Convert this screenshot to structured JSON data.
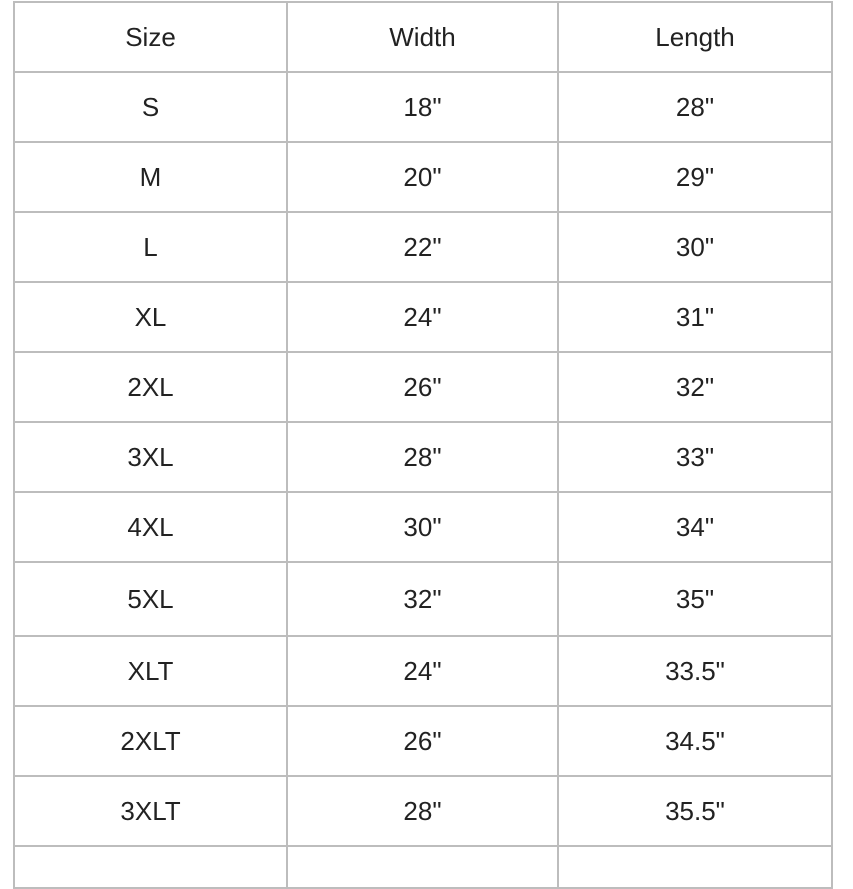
{
  "table": {
    "headers": [
      "Size",
      "Width",
      "Length"
    ],
    "rows": [
      [
        "S",
        "18\"",
        "28\""
      ],
      [
        "M",
        "20\"",
        "29\""
      ],
      [
        "L",
        "22\"",
        "30\""
      ],
      [
        "XL",
        "24\"",
        "31\""
      ],
      [
        "2XL",
        "26\"",
        "32\""
      ],
      [
        "3XL",
        "28\"",
        "33\""
      ],
      [
        "4XL",
        "30\"",
        "34\""
      ],
      [
        "5XL",
        "32\"",
        "35\""
      ],
      [
        "XLT",
        "24\"",
        "33.5\""
      ],
      [
        "2XLT",
        "26\"",
        "34.5\""
      ],
      [
        "3XLT",
        "28\"",
        "35.5\""
      ]
    ]
  }
}
